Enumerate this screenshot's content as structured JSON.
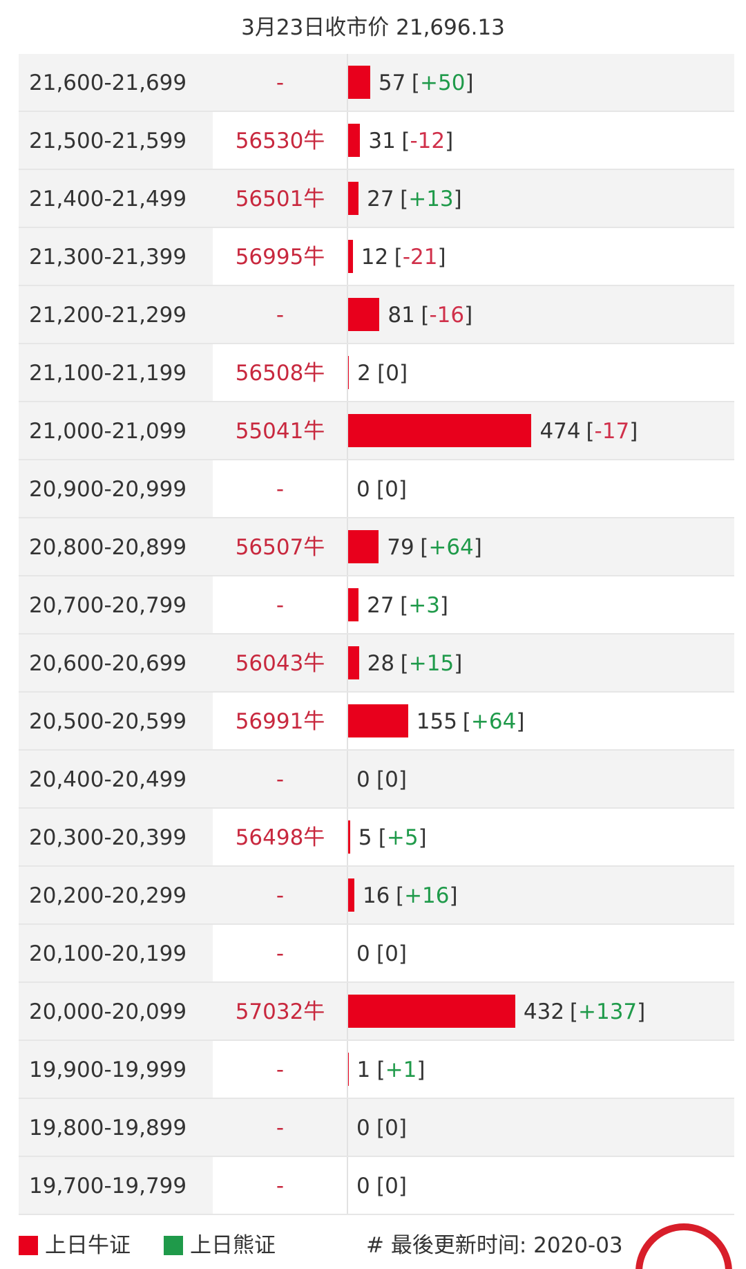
{
  "header": {
    "title": "3月23日收市价 21,696.13"
  },
  "table": {
    "rows": [
      {
        "range": "21,600-21,699",
        "code": "-",
        "count": 57,
        "change": "[+50]"
      },
      {
        "range": "21,500-21,599",
        "code": "56530牛",
        "count": 31,
        "change": "[-12]"
      },
      {
        "range": "21,400-21,499",
        "code": "56501牛",
        "count": 27,
        "change": "[+13]"
      },
      {
        "range": "21,300-21,399",
        "code": "56995牛",
        "count": 12,
        "change": "[-21]"
      },
      {
        "range": "21,200-21,299",
        "code": "-",
        "count": 81,
        "change": "[-16]"
      },
      {
        "range": "21,100-21,199",
        "code": "56508牛",
        "count": 2,
        "change": "[0]"
      },
      {
        "range": "21,000-21,099",
        "code": "55041牛",
        "count": 474,
        "change": "[-17]"
      },
      {
        "range": "20,900-20,999",
        "code": "-",
        "count": 0,
        "change": "[0]"
      },
      {
        "range": "20,800-20,899",
        "code": "56507牛",
        "count": 79,
        "change": "[+64]"
      },
      {
        "range": "20,700-20,799",
        "code": "-",
        "count": 27,
        "change": "[+3]"
      },
      {
        "range": "20,600-20,699",
        "code": "56043牛",
        "count": 28,
        "change": "[+15]"
      },
      {
        "range": "20,500-20,599",
        "code": "56991牛",
        "count": 155,
        "change": "[+64]"
      },
      {
        "range": "20,400-20,499",
        "code": "-",
        "count": 0,
        "change": "[0]"
      },
      {
        "range": "20,300-20,399",
        "code": "56498牛",
        "count": 5,
        "change": "[+5]"
      },
      {
        "range": "20,200-20,299",
        "code": "-",
        "count": 16,
        "change": "[+16]"
      },
      {
        "range": "20,100-20,199",
        "code": "-",
        "count": 0,
        "change": "[0]"
      },
      {
        "range": "20,000-20,099",
        "code": "57032牛",
        "count": 432,
        "change": "[+137]"
      },
      {
        "range": "19,900-19,999",
        "code": "-",
        "count": 1,
        "change": "[+1]"
      },
      {
        "range": "19,800-19,899",
        "code": "-",
        "count": 0,
        "change": "[0]"
      },
      {
        "range": "19,700-19,799",
        "code": "-",
        "count": 0,
        "change": "[0]"
      }
    ]
  },
  "legend": {
    "items": [
      {
        "label": "上日牛证",
        "color": "#e8001c"
      },
      {
        "label": "上日熊证",
        "color": "#1f9a4a"
      }
    ],
    "updated": "# 最後更新时间: 2020-03"
  }
}
